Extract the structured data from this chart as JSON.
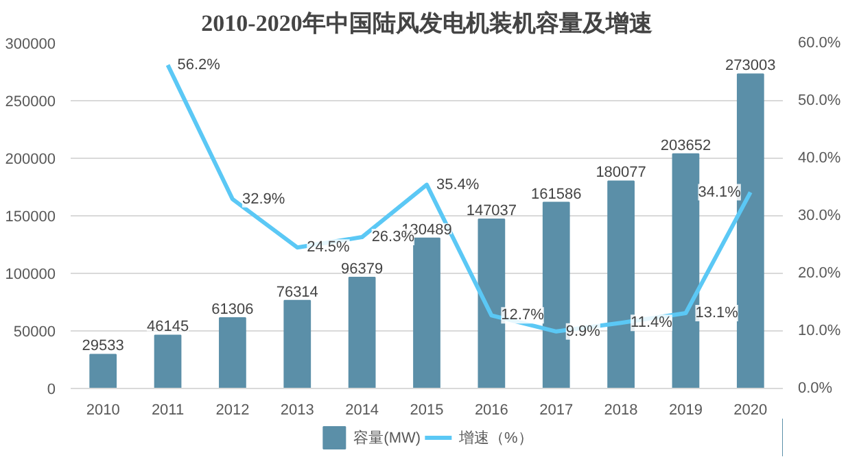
{
  "chart_data": {
    "type": "bar",
    "title": "2010-2020年中国陆风发电机装机容量及增速",
    "categories": [
      "2010",
      "2011",
      "2012",
      "2013",
      "2014",
      "2015",
      "2016",
      "2017",
      "2018",
      "2019",
      "2020"
    ],
    "series": [
      {
        "name": "容量(MW)",
        "color": "#5b8fa8",
        "values": [
          29533,
          46145,
          61306,
          76314,
          96379,
          130489,
          147037,
          161586,
          180077,
          203652,
          273003
        ]
      },
      {
        "name": "增速（%）",
        "type": "line",
        "axis": "y2",
        "color": "#5bc8f5",
        "values": [
          null,
          56.2,
          32.9,
          24.5,
          26.3,
          35.4,
          12.7,
          9.9,
          11.4,
          13.1,
          34.1
        ],
        "value_labels": [
          null,
          "56.2%",
          "32.9%",
          "24.5%",
          "26.3%",
          "35.4%",
          "12.7%",
          "9.9%",
          "11.4%",
          "13.1%",
          "34.1%"
        ]
      }
    ],
    "ylim": [
      0,
      300000
    ],
    "yticks": [
      0,
      50000,
      100000,
      150000,
      200000,
      250000,
      300000
    ],
    "y2lim": [
      0,
      60
    ],
    "y2ticks": [
      {
        "value": 0,
        "label": "0.0%"
      },
      {
        "value": 10,
        "label": "10.0%"
      },
      {
        "value": 20,
        "label": "20.0%"
      },
      {
        "value": 30,
        "label": "30.0%"
      },
      {
        "value": 40,
        "label": "40.0%"
      },
      {
        "value": 50,
        "label": "50.0%"
      },
      {
        "value": 60,
        "label": "60.0%"
      }
    ],
    "data_labels": true,
    "grid": "y",
    "legend": "bottom",
    "marker": "none"
  }
}
